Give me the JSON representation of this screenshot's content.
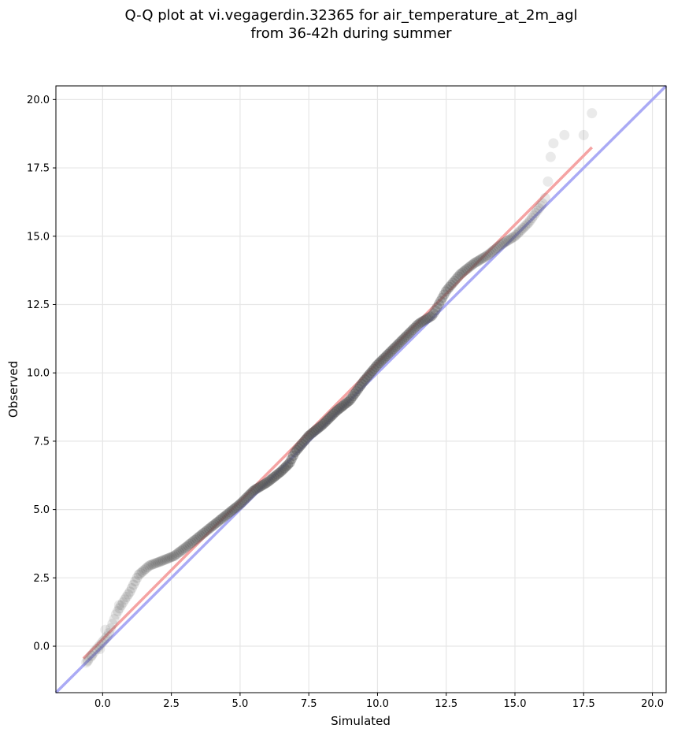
{
  "chart_data": {
    "type": "scatter",
    "title_lines": [
      "Q-Q plot at vi.vegagerdin.32365 for air_temperature_at_2m_agl",
      "from 36-42h during summer"
    ],
    "xlabel": "Simulated",
    "ylabel": "Observed",
    "xlim": [
      -1.7,
      20.5
    ],
    "ylim": [
      -1.7,
      20.5
    ],
    "xticks": [
      0.0,
      2.5,
      5.0,
      7.5,
      10.0,
      12.5,
      15.0,
      17.5,
      20.0
    ],
    "yticks": [
      0.0,
      2.5,
      5.0,
      7.5,
      10.0,
      12.5,
      15.0,
      17.5,
      20.0
    ],
    "grid": true,
    "colors": {
      "identity_line": "#aaaaf5",
      "fit_line": "#f5a3a3",
      "points": "#555555"
    },
    "reference_lines": [
      {
        "kind": "identity",
        "x": [
          -1.7,
          20.5
        ],
        "y": [
          -1.7,
          20.5
        ]
      },
      {
        "kind": "fit",
        "x": [
          -0.7,
          17.8
        ],
        "y": [
          -0.45,
          18.25
        ]
      }
    ],
    "quantile_curve_x": [
      -0.6,
      -0.3,
      0.2,
      0.5,
      0.8,
      1.0,
      1.3,
      1.7,
      2.1,
      2.6,
      3.0,
      3.5,
      4.0,
      4.5,
      5.0,
      5.5,
      6.0,
      6.5,
      6.8,
      7.0,
      7.5,
      8.0,
      8.5,
      9.0,
      9.5,
      10.0,
      10.5,
      11.0,
      11.5,
      12.0,
      12.5,
      13.0,
      13.5,
      14.0,
      14.5,
      15.0,
      15.5,
      16.0
    ],
    "quantile_curve_y": [
      -0.6,
      -0.2,
      0.4,
      1.2,
      1.7,
      2.0,
      2.6,
      2.95,
      3.1,
      3.3,
      3.6,
      4.0,
      4.4,
      4.8,
      5.2,
      5.7,
      6.0,
      6.4,
      6.7,
      7.1,
      7.7,
      8.1,
      8.6,
      9.0,
      9.7,
      10.3,
      10.8,
      11.3,
      11.8,
      12.1,
      13.0,
      13.6,
      14.0,
      14.3,
      14.7,
      15.0,
      15.5,
      16.2
    ],
    "tail_points_x": [
      -0.55,
      -0.4,
      -0.1,
      0.1,
      0.6,
      16.1,
      16.2,
      16.3,
      16.4,
      16.8,
      17.5,
      17.8
    ],
    "tail_points_y": [
      -0.55,
      -0.35,
      -0.1,
      0.6,
      1.5,
      16.4,
      17.0,
      17.9,
      18.4,
      18.7,
      18.7,
      19.5
    ]
  }
}
